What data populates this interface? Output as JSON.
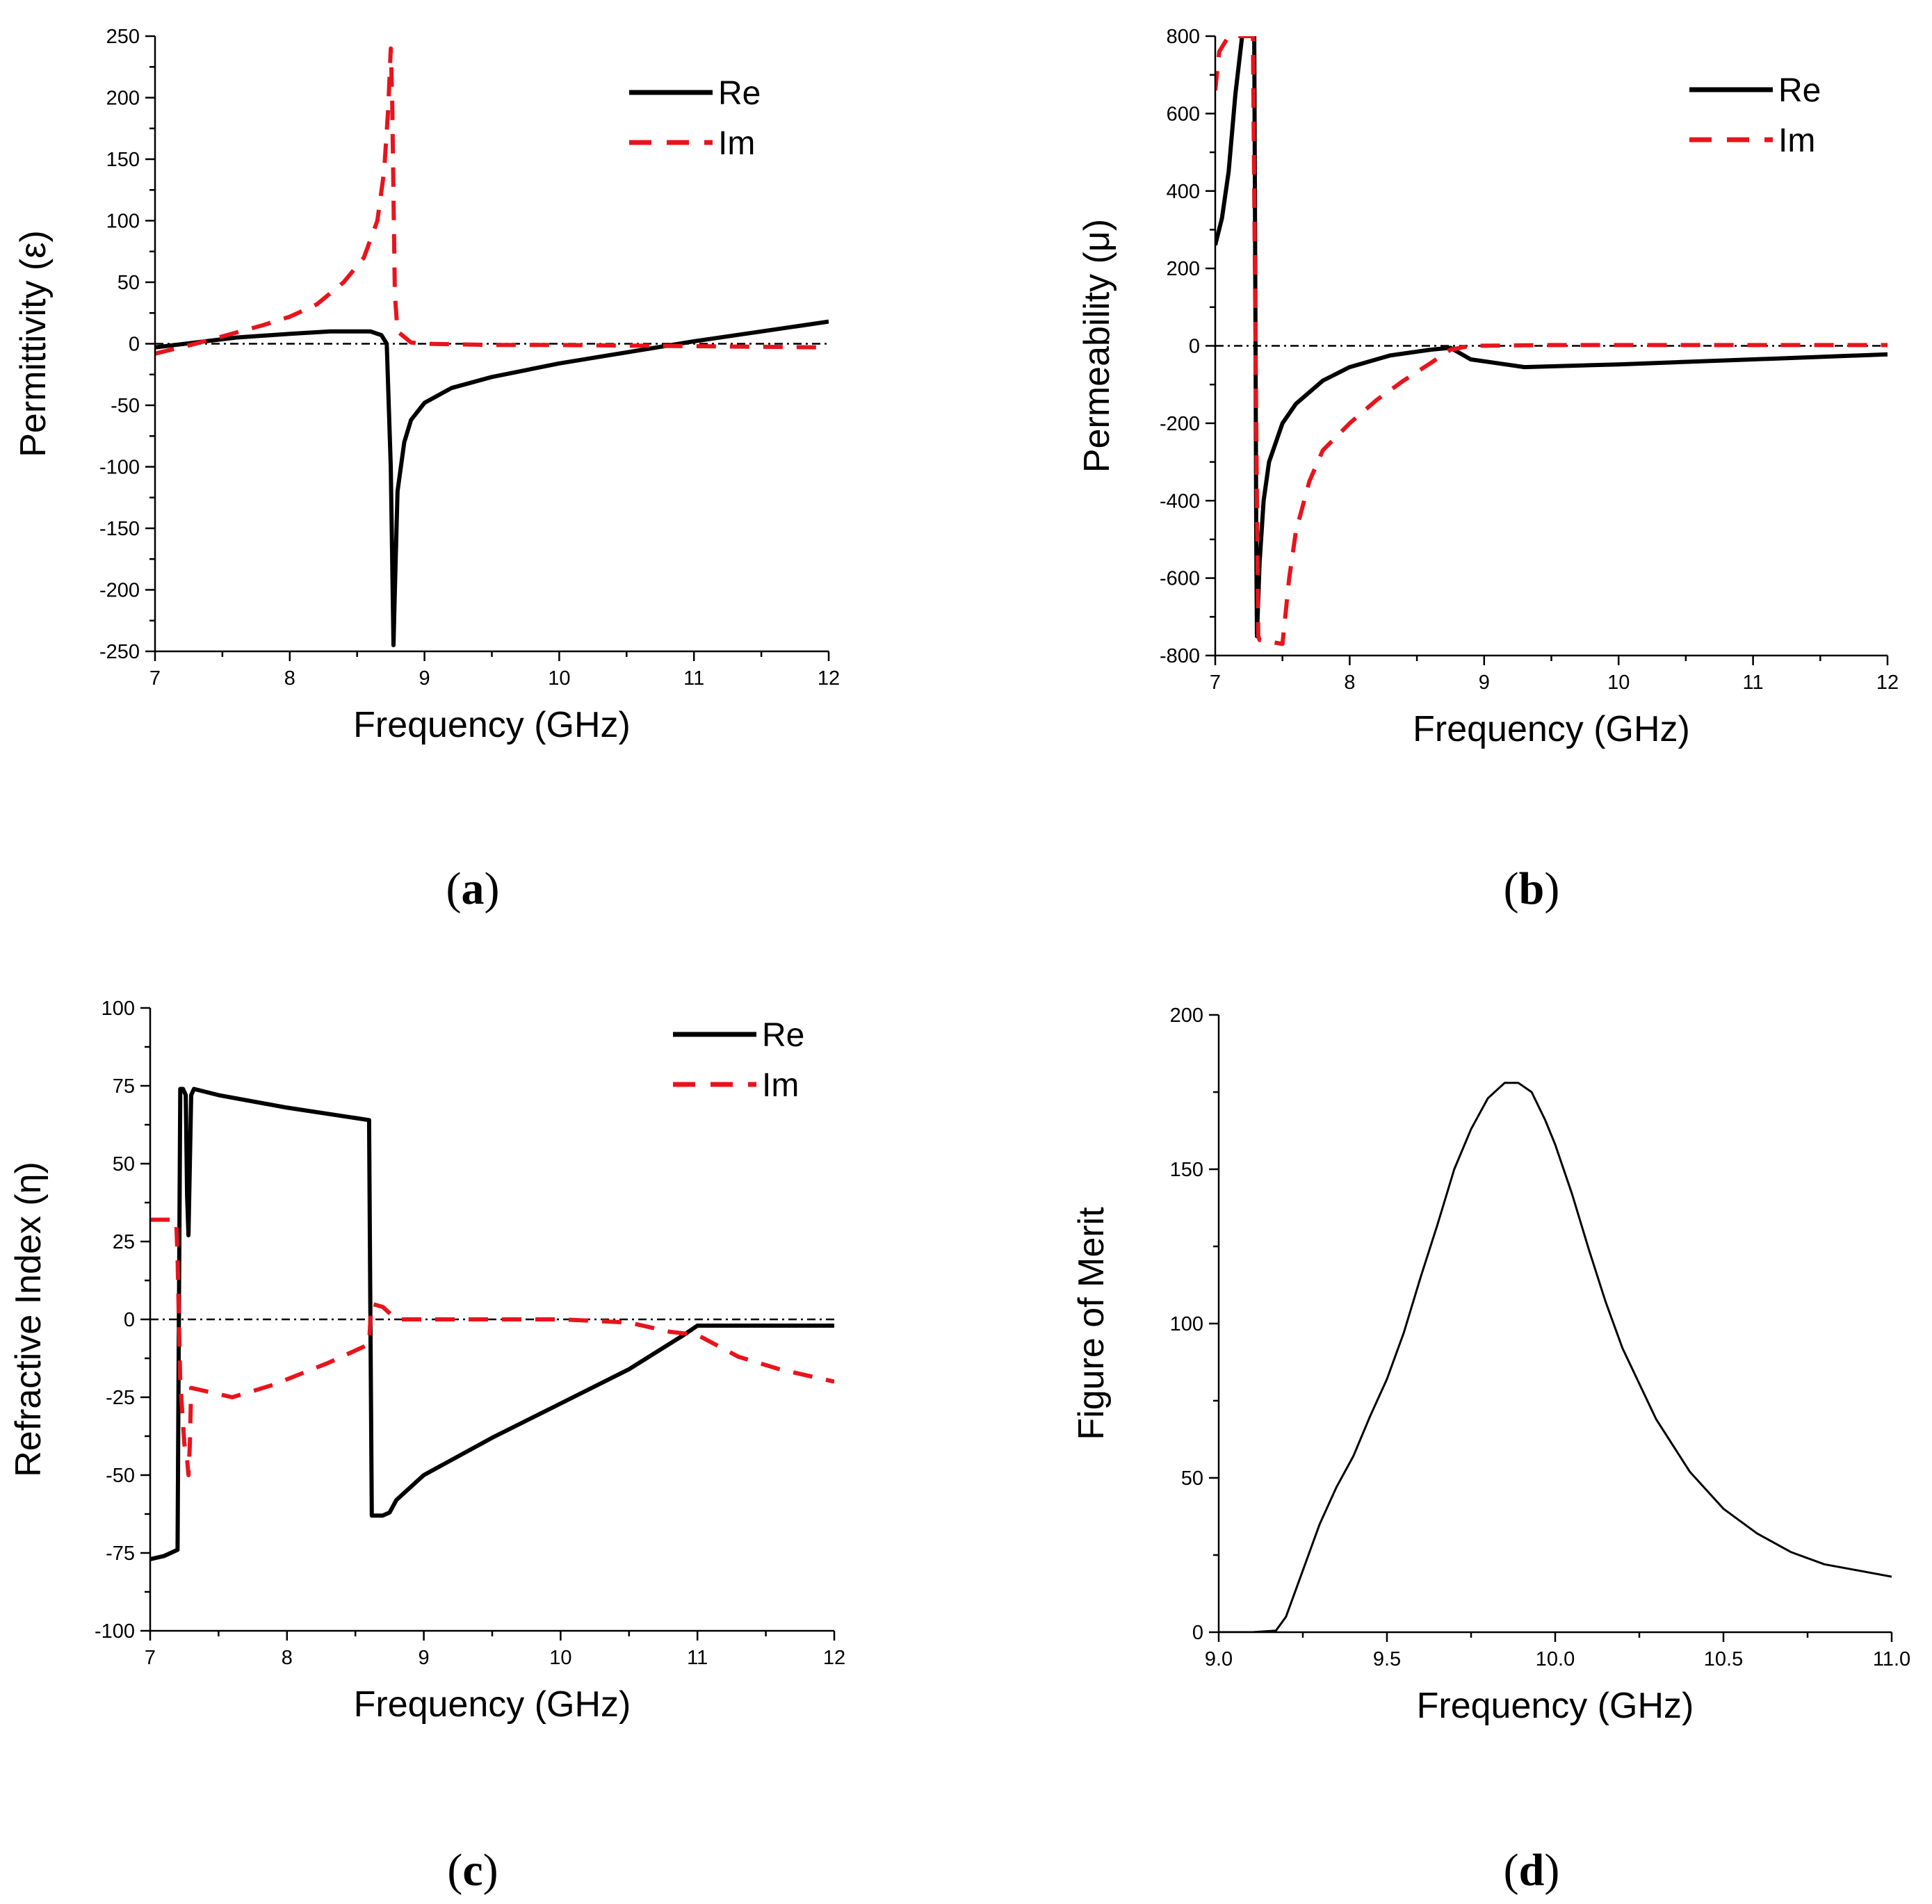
{
  "panel_labels": {
    "a": {
      "open": "(",
      "letter": "a",
      "close": ")"
    },
    "b": {
      "open": "(",
      "letter": "b",
      "close": ")"
    },
    "c": {
      "open": "(",
      "letter": "c",
      "close": ")"
    },
    "d": {
      "open": "(",
      "letter": "d",
      "close": ")"
    }
  },
  "colors": {
    "re": "#000000",
    "im": "#e8141c",
    "zero_line": "#000000"
  },
  "chart_data": [
    {
      "id": "a",
      "type": "line",
      "xlabel": "Frequency (GHz)",
      "ylabel": "Permittivity (ε)",
      "xlim": [
        7,
        12
      ],
      "ylim": [
        -250,
        250
      ],
      "xticks": [
        7,
        8,
        9,
        10,
        11,
        12
      ],
      "yticks": [
        -250,
        -200,
        -150,
        -100,
        -50,
        0,
        50,
        100,
        150,
        200,
        250
      ],
      "xtick_labels": [
        "7",
        "8",
        "9",
        "10",
        "11",
        "12"
      ],
      "ytick_labels": [
        "-250",
        "-200",
        "-150",
        "-100",
        "-50",
        "0",
        "50",
        "100",
        "150",
        "200",
        "250"
      ],
      "legend_position": "top-right",
      "zero_line": true,
      "series": [
        {
          "name": "Re",
          "style": "solid",
          "x": [
            7.0,
            7.3,
            7.6,
            8.0,
            8.3,
            8.6,
            8.68,
            8.72,
            8.75,
            8.77,
            8.78,
            8.8,
            8.85,
            8.9,
            9.0,
            9.2,
            9.5,
            10.0,
            10.5,
            11.0,
            11.5,
            12.0
          ],
          "y": [
            -3,
            1,
            5,
            8,
            10,
            10,
            7,
            0,
            -100,
            -245,
            -200,
            -120,
            -80,
            -62,
            -48,
            -36,
            -27,
            -16,
            -7,
            2,
            10,
            18
          ]
        },
        {
          "name": "Im",
          "style": "dashed",
          "x": [
            7.0,
            7.3,
            7.5,
            7.8,
            8.0,
            8.2,
            8.4,
            8.55,
            8.65,
            8.7,
            8.73,
            8.75,
            8.76,
            8.77,
            8.78,
            8.8,
            8.9,
            9.0,
            9.5,
            10.0,
            11.0,
            12.0
          ],
          "y": [
            -8,
            0,
            6,
            15,
            22,
            32,
            50,
            70,
            100,
            140,
            190,
            240,
            200,
            120,
            40,
            10,
            1,
            0,
            -1,
            -1,
            -2,
            -3
          ]
        }
      ]
    },
    {
      "id": "b",
      "type": "line",
      "xlabel": "Frequency (GHz)",
      "ylabel": "Permeability (μ)",
      "xlim": [
        7,
        12
      ],
      "ylim": [
        -800,
        800
      ],
      "xticks": [
        7,
        8,
        9,
        10,
        11,
        12
      ],
      "yticks": [
        -800,
        -600,
        -400,
        -200,
        0,
        200,
        400,
        600,
        800
      ],
      "xtick_labels": [
        "7",
        "8",
        "9",
        "10",
        "11",
        "12"
      ],
      "ytick_labels": [
        "-800",
        "-600",
        "-400",
        "-200",
        "0",
        "200",
        "400",
        "600",
        "800"
      ],
      "legend_position": "top-right",
      "zero_line": true,
      "series": [
        {
          "name": "Re",
          "style": "solid",
          "x": [
            7.0,
            7.05,
            7.1,
            7.15,
            7.2,
            7.25,
            7.28,
            7.29,
            7.3,
            7.305,
            7.31,
            7.33,
            7.36,
            7.4,
            7.5,
            7.6,
            7.8,
            8.0,
            8.3,
            8.6,
            8.75,
            8.8,
            8.9,
            9.3,
            10.0,
            11.0,
            12.0
          ],
          "y": [
            260,
            330,
            450,
            650,
            800,
            800,
            800,
            800,
            0,
            -500,
            -750,
            -560,
            -400,
            -300,
            -200,
            -150,
            -90,
            -55,
            -25,
            -10,
            -5,
            -15,
            -35,
            -55,
            -48,
            -35,
            -22
          ]
        },
        {
          "name": "Im",
          "style": "dashed",
          "x": [
            7.0,
            7.03,
            7.1,
            7.2,
            7.25,
            7.28,
            7.3,
            7.31,
            7.32,
            7.33,
            7.5,
            7.55,
            7.6,
            7.7,
            7.8,
            8.0,
            8.2,
            8.4,
            8.6,
            8.75,
            8.9,
            9.5,
            10.0,
            11.0,
            12.0
          ],
          "y": [
            660,
            760,
            800,
            800,
            800,
            800,
            0,
            -400,
            -750,
            -760,
            -770,
            -600,
            -480,
            -350,
            -270,
            -200,
            -140,
            -90,
            -45,
            -10,
            0,
            2,
            2,
            2,
            2
          ]
        }
      ]
    },
    {
      "id": "c",
      "type": "line",
      "xlabel": "Frequency (GHz)",
      "ylabel": "Refractive Index (η)",
      "xlim": [
        7,
        12
      ],
      "ylim": [
        -100,
        100
      ],
      "xticks": [
        7,
        8,
        9,
        10,
        11,
        12
      ],
      "yticks": [
        -100,
        -75,
        -50,
        -25,
        0,
        25,
        50,
        75,
        100
      ],
      "xtick_labels": [
        "7",
        "8",
        "9",
        "10",
        "11",
        "12"
      ],
      "ytick_labels": [
        "-100",
        "-75",
        "-50",
        "-25",
        "0",
        "25",
        "50",
        "75",
        "100"
      ],
      "legend_position": "top-right",
      "zero_line": true,
      "series": [
        {
          "name": "Re",
          "style": "solid",
          "x": [
            7.0,
            7.1,
            7.2,
            7.21,
            7.22,
            7.24,
            7.26,
            7.27,
            7.28,
            7.3,
            7.32,
            7.5,
            8.0,
            8.6,
            8.61,
            8.62,
            8.7,
            8.75,
            8.8,
            9.0,
            9.5,
            10.0,
            10.5,
            10.9,
            11.0,
            11.5,
            12.0
          ],
          "y": [
            -77,
            -76,
            -74,
            0,
            74,
            74,
            72,
            40,
            27,
            72,
            74,
            72,
            68,
            64,
            0,
            -63,
            -63,
            -62,
            -58,
            -50,
            -38,
            -27,
            -16,
            -5,
            -2,
            -2,
            -2
          ]
        },
        {
          "name": "Im",
          "style": "dashed",
          "x": [
            7.0,
            7.19,
            7.2,
            7.21,
            7.22,
            7.25,
            7.27,
            7.28,
            7.29,
            7.3,
            7.4,
            7.6,
            7.9,
            8.3,
            8.6,
            8.61,
            8.62,
            8.7,
            8.8,
            9.0,
            10.0,
            10.5,
            10.8,
            11.0,
            11.3,
            11.6,
            12.0
          ],
          "y": [
            32,
            32,
            20,
            0,
            -20,
            -40,
            -45,
            -50,
            -40,
            -22,
            -23,
            -25,
            -21,
            -14,
            -8,
            0,
            5,
            4,
            0,
            0,
            0,
            -1,
            -4,
            -5,
            -12,
            -16,
            -20
          ]
        }
      ]
    },
    {
      "id": "d",
      "type": "line",
      "xlabel": "Frequency (GHz)",
      "ylabel": "Figure of Merit",
      "xlim": [
        9.0,
        11.0
      ],
      "ylim": [
        0,
        200
      ],
      "xticks": [
        9.0,
        9.5,
        10.0,
        10.5,
        11.0
      ],
      "yticks": [
        0,
        50,
        100,
        150,
        200
      ],
      "xtick_labels": [
        "9.0",
        "9.5",
        "10.0",
        "10.5",
        "11.0"
      ],
      "ytick_labels": [
        "0",
        "50",
        "100",
        "150",
        "200"
      ],
      "legend_position": "none",
      "zero_line": false,
      "series": [
        {
          "style": "thin",
          "x": [
            9.0,
            9.1,
            9.17,
            9.2,
            9.25,
            9.3,
            9.35,
            9.4,
            9.45,
            9.5,
            9.55,
            9.6,
            9.65,
            9.7,
            9.75,
            9.8,
            9.85,
            9.89,
            9.93,
            9.97,
            10.0,
            10.05,
            10.1,
            10.15,
            10.2,
            10.3,
            10.4,
            10.5,
            10.6,
            10.7,
            10.8,
            10.9,
            11.0
          ],
          "y": [
            0,
            0,
            0.5,
            5,
            20,
            35,
            47,
            57,
            70,
            82,
            97,
            115,
            132,
            150,
            163,
            173,
            178,
            178,
            175,
            166,
            158,
            142,
            124,
            107,
            92,
            69,
            52,
            40,
            32,
            26,
            22,
            20,
            18
          ]
        }
      ]
    }
  ]
}
